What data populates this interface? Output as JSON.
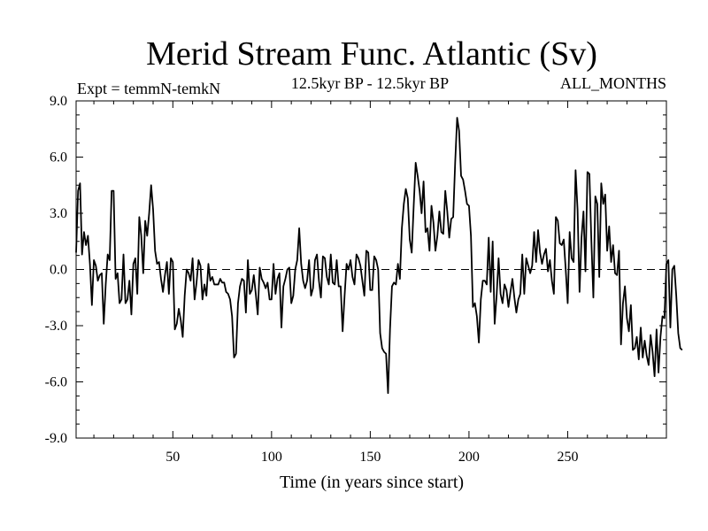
{
  "chart_data": {
    "type": "line",
    "title": "Merid Stream Func. Atlantic (Sv)",
    "subtitle_left": "Expt = temmN-temkN",
    "subtitle_center": "12.5kyr BP - 12.5kyr BP",
    "subtitle_right": "ALL_MONTHS",
    "xlabel": "Time (in years since start)",
    "ylabel": "",
    "xlim": [
      1,
      300
    ],
    "ylim": [
      -9.0,
      9.0
    ],
    "xticks": [
      50,
      100,
      150,
      200,
      250
    ],
    "xtick_labels": [
      "50",
      "100",
      "150",
      "200",
      "250"
    ],
    "yticks": [
      -9.0,
      -6.0,
      -3.0,
      0.0,
      3.0,
      6.0,
      9.0
    ],
    "ytick_labels": [
      "-9.0",
      "-6.0",
      "-3.0",
      "0.0",
      "3.0",
      "6.0",
      "9.0"
    ],
    "zero_line": "dashed",
    "series": [
      {
        "name": "Merid Stream Func. Atlantic",
        "x_start": 1,
        "x_step": 1,
        "values": [
          0.9,
          4.2,
          4.6,
          0.8,
          2.0,
          1.3,
          1.8,
          0.3,
          -1.9,
          0.5,
          0.2,
          -0.6,
          -0.3,
          -0.2,
          -2.9,
          -0.8,
          0.8,
          0.5,
          4.2,
          4.2,
          -0.5,
          -0.2,
          -1.8,
          -1.6,
          0.8,
          -1.8,
          -1.6,
          -0.6,
          -2.4,
          0.3,
          0.6,
          -1.3,
          2.8,
          1.8,
          -0.2,
          2.6,
          1.8,
          3.0,
          4.5,
          3.2,
          1.0,
          0.3,
          0.4,
          -0.5,
          -1.2,
          -0.3,
          0.4,
          -1.3,
          0.6,
          0.4,
          -3.2,
          -2.9,
          -2.1,
          -2.7,
          -3.6,
          -1.4,
          0.0,
          -0.2,
          -0.6,
          0.6,
          -1.6,
          -0.7,
          0.5,
          0.2,
          -1.6,
          -0.8,
          -1.4,
          0.3,
          -0.6,
          -0.4,
          -0.8,
          -0.8,
          -0.8,
          -0.5,
          -0.7,
          -0.7,
          -1.2,
          -1.3,
          -1.6,
          -2.5,
          -4.7,
          -4.5,
          -1.8,
          -0.9,
          -0.5,
          -0.6,
          -2.3,
          0.5,
          -1.3,
          -1.1,
          -0.3,
          -1.3,
          -2.4,
          0.1,
          -0.5,
          -0.7,
          -1.0,
          -0.7,
          -1.6,
          -1.6,
          0.3,
          -1.3,
          -0.5,
          -0.2,
          -3.1,
          -0.9,
          -0.5,
          0.0,
          0.1,
          -1.8,
          -1.4,
          0.0,
          0.5,
          2.2,
          0.3,
          -0.6,
          -1.0,
          -0.6,
          0.5,
          -1.4,
          -1.0,
          0.5,
          0.8,
          -0.6,
          -1.5,
          0.7,
          0.6,
          -0.4,
          -0.8,
          0.8,
          -0.7,
          -0.8,
          0.5,
          -0.9,
          -0.9,
          -3.3,
          -1.4,
          0.3,
          0.0,
          0.5,
          -0.4,
          -0.8,
          0.8,
          0.6,
          0.2,
          -0.6,
          -1.4,
          1.0,
          0.9,
          -1.1,
          -1.1,
          0.7,
          0.5,
          0.0,
          -3.4,
          -4.2,
          -4.4,
          -4.5,
          -6.6,
          -3.2,
          -0.9,
          -0.7,
          -0.8,
          0.3,
          -0.5,
          2.2,
          3.5,
          4.3,
          3.8,
          1.6,
          0.9,
          3.4,
          5.7,
          5.0,
          4.2,
          3.0,
          4.7,
          2.0,
          2.2,
          1.0,
          3.4,
          2.5,
          1.0,
          1.8,
          3.1,
          2.0,
          1.9,
          4.2,
          3.1,
          1.7,
          2.7,
          2.8,
          5.7,
          8.1,
          7.4,
          5.0,
          4.8,
          4.2,
          3.5,
          3.4,
          1.8,
          -2.0,
          -1.8,
          -2.5,
          -3.9,
          -1.6,
          -0.6,
          -0.6,
          -0.8,
          1.7,
          -1.2,
          1.5,
          -2.9,
          -1.4,
          0.6,
          -1.3,
          -1.8,
          -0.8,
          -1.1,
          -2.0,
          -1.2,
          -0.5,
          -1.5,
          -2.3,
          -1.6,
          -1.3,
          0.8,
          -1.3,
          0.6,
          0.2,
          -0.2,
          0.2,
          2.0,
          0.4,
          2.1,
          0.9,
          0.3,
          0.8,
          1.1,
          -0.1,
          0.5,
          -0.6,
          -1.3,
          2.8,
          2.6,
          1.4,
          1.3,
          1.6,
          0.0,
          -1.8,
          2.0,
          0.6,
          0.4,
          5.3,
          3.2,
          -1.2,
          1.7,
          3.1,
          -0.1,
          5.2,
          5.1,
          1.5,
          -1.5,
          3.9,
          3.5,
          -0.4,
          4.6,
          3.5,
          4.0,
          1.0,
          2.3,
          0.4,
          1.3,
          -0.2,
          -0.3,
          1.0,
          -4.0,
          -1.8,
          -0.9,
          -2.6,
          -3.3,
          -1.9,
          -4.3,
          -4.2,
          -3.6,
          -4.8,
          -3.1,
          -4.7,
          -3.8,
          -4.6,
          -5.1,
          -3.5,
          -4.4,
          -5.7,
          -3.2,
          -5.5,
          -3.6,
          -2.5,
          -2.6,
          0.3,
          0.5,
          -3.1,
          0.0,
          0.2,
          -1.4,
          -3.4,
          -4.2,
          -4.3
        ]
      }
    ]
  }
}
